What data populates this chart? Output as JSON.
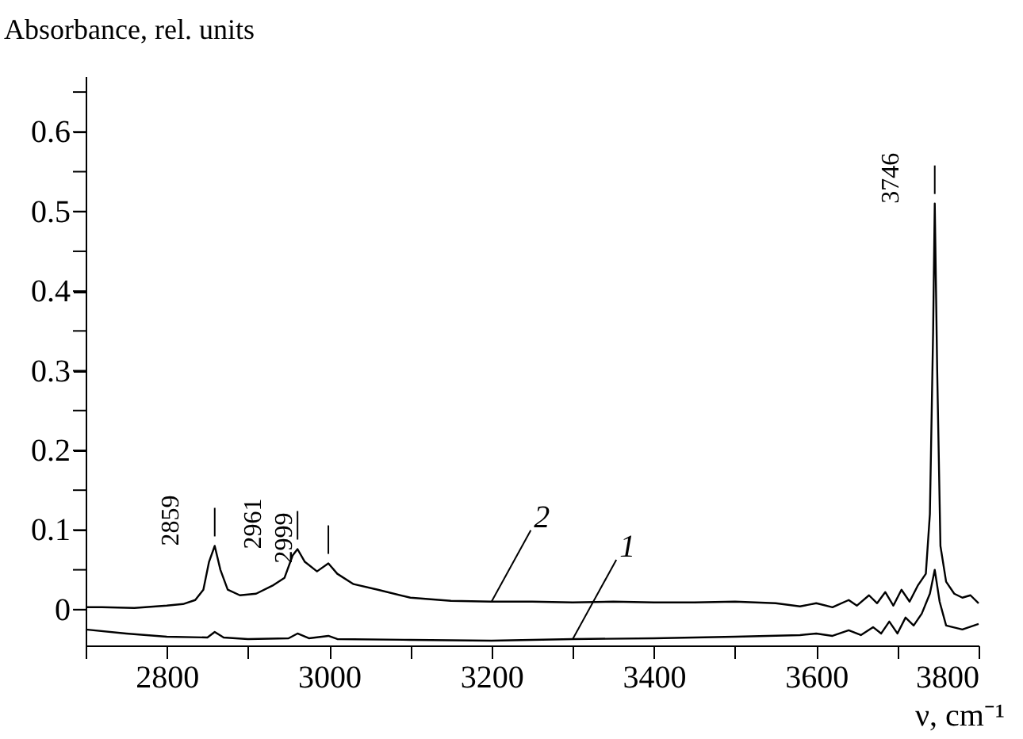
{
  "chart_data": {
    "type": "line",
    "xlabel": "ν, cm⁻¹",
    "ylabel": "Absorbance, rel. units",
    "xlim": [
      2700,
      3800
    ],
    "xticks": [
      {
        "value": 2700,
        "label": null
      },
      2800,
      {
        "value": 2900,
        "label": null
      },
      3000,
      {
        "value": 3100,
        "label": null
      },
      3200,
      {
        "value": 3300,
        "label": null
      },
      3400,
      {
        "value": 3500,
        "label": null
      },
      3600,
      {
        "value": 3700,
        "label": null
      },
      3800
    ],
    "ylim": [
      -0.045,
      0.67
    ],
    "yticks": [
      0,
      {
        "value": 0.05,
        "label": null
      },
      0.1,
      {
        "value": 0.15,
        "label": null
      },
      0.2,
      {
        "value": 0.25,
        "label": null
      },
      0.3,
      {
        "value": 0.35,
        "label": null
      },
      0.4,
      {
        "value": 0.45,
        "label": null
      },
      0.5,
      {
        "value": 0.55,
        "label": null
      },
      0.6,
      {
        "value": 0.65,
        "label": null
      }
    ],
    "grid": false,
    "legend": false,
    "series": [
      {
        "name": "2",
        "color": "#000000",
        "x": [
          2700,
          2720,
          2760,
          2800,
          2820,
          2835,
          2845,
          2852,
          2859,
          2866,
          2875,
          2890,
          2910,
          2930,
          2945,
          2955,
          2961,
          2970,
          2985,
          2999,
          3010,
          3030,
          3060,
          3100,
          3150,
          3200,
          3250,
          3300,
          3350,
          3400,
          3450,
          3500,
          3550,
          3580,
          3600,
          3620,
          3640,
          3650,
          3665,
          3675,
          3685,
          3695,
          3705,
          3715,
          3725,
          3735,
          3740,
          3744,
          3746,
          3749,
          3753,
          3760,
          3770,
          3780,
          3790,
          3800
        ],
        "values": [
          0.003,
          0.003,
          0.002,
          0.005,
          0.007,
          0.012,
          0.025,
          0.06,
          0.08,
          0.05,
          0.025,
          0.018,
          0.02,
          0.03,
          0.04,
          0.068,
          0.076,
          0.06,
          0.048,
          0.058,
          0.045,
          0.032,
          0.025,
          0.015,
          0.011,
          0.01,
          0.01,
          0.009,
          0.01,
          0.009,
          0.009,
          0.01,
          0.008,
          0.004,
          0.008,
          0.003,
          0.012,
          0.005,
          0.018,
          0.008,
          0.022,
          0.005,
          0.025,
          0.01,
          0.03,
          0.045,
          0.12,
          0.35,
          0.51,
          0.3,
          0.08,
          0.035,
          0.02,
          0.015,
          0.018,
          0.008
        ]
      },
      {
        "name": "1",
        "color": "#000000",
        "x": [
          2700,
          2750,
          2800,
          2850,
          2859,
          2870,
          2900,
          2950,
          2961,
          2975,
          2999,
          3010,
          3100,
          3200,
          3300,
          3400,
          3500,
          3580,
          3600,
          3620,
          3640,
          3655,
          3670,
          3680,
          3690,
          3700,
          3710,
          3720,
          3730,
          3740,
          3746,
          3752,
          3760,
          3780,
          3800
        ],
        "values": [
          -0.025,
          -0.03,
          -0.034,
          -0.035,
          -0.028,
          -0.035,
          -0.037,
          -0.036,
          -0.03,
          -0.036,
          -0.033,
          -0.037,
          -0.038,
          -0.039,
          -0.037,
          -0.036,
          -0.034,
          -0.032,
          -0.03,
          -0.033,
          -0.026,
          -0.032,
          -0.022,
          -0.03,
          -0.015,
          -0.03,
          -0.01,
          -0.02,
          -0.005,
          0.02,
          0.05,
          0.01,
          -0.02,
          -0.025,
          -0.018
        ]
      }
    ],
    "annotations": [
      {
        "text": "2859",
        "x": 2859,
        "y": 0.08
      },
      {
        "text": "2961",
        "x": 2961,
        "y": 0.076
      },
      {
        "text": "2999",
        "x": 2999,
        "y": 0.058
      },
      {
        "text": "3746",
        "x": 3746,
        "y": 0.51
      }
    ]
  }
}
